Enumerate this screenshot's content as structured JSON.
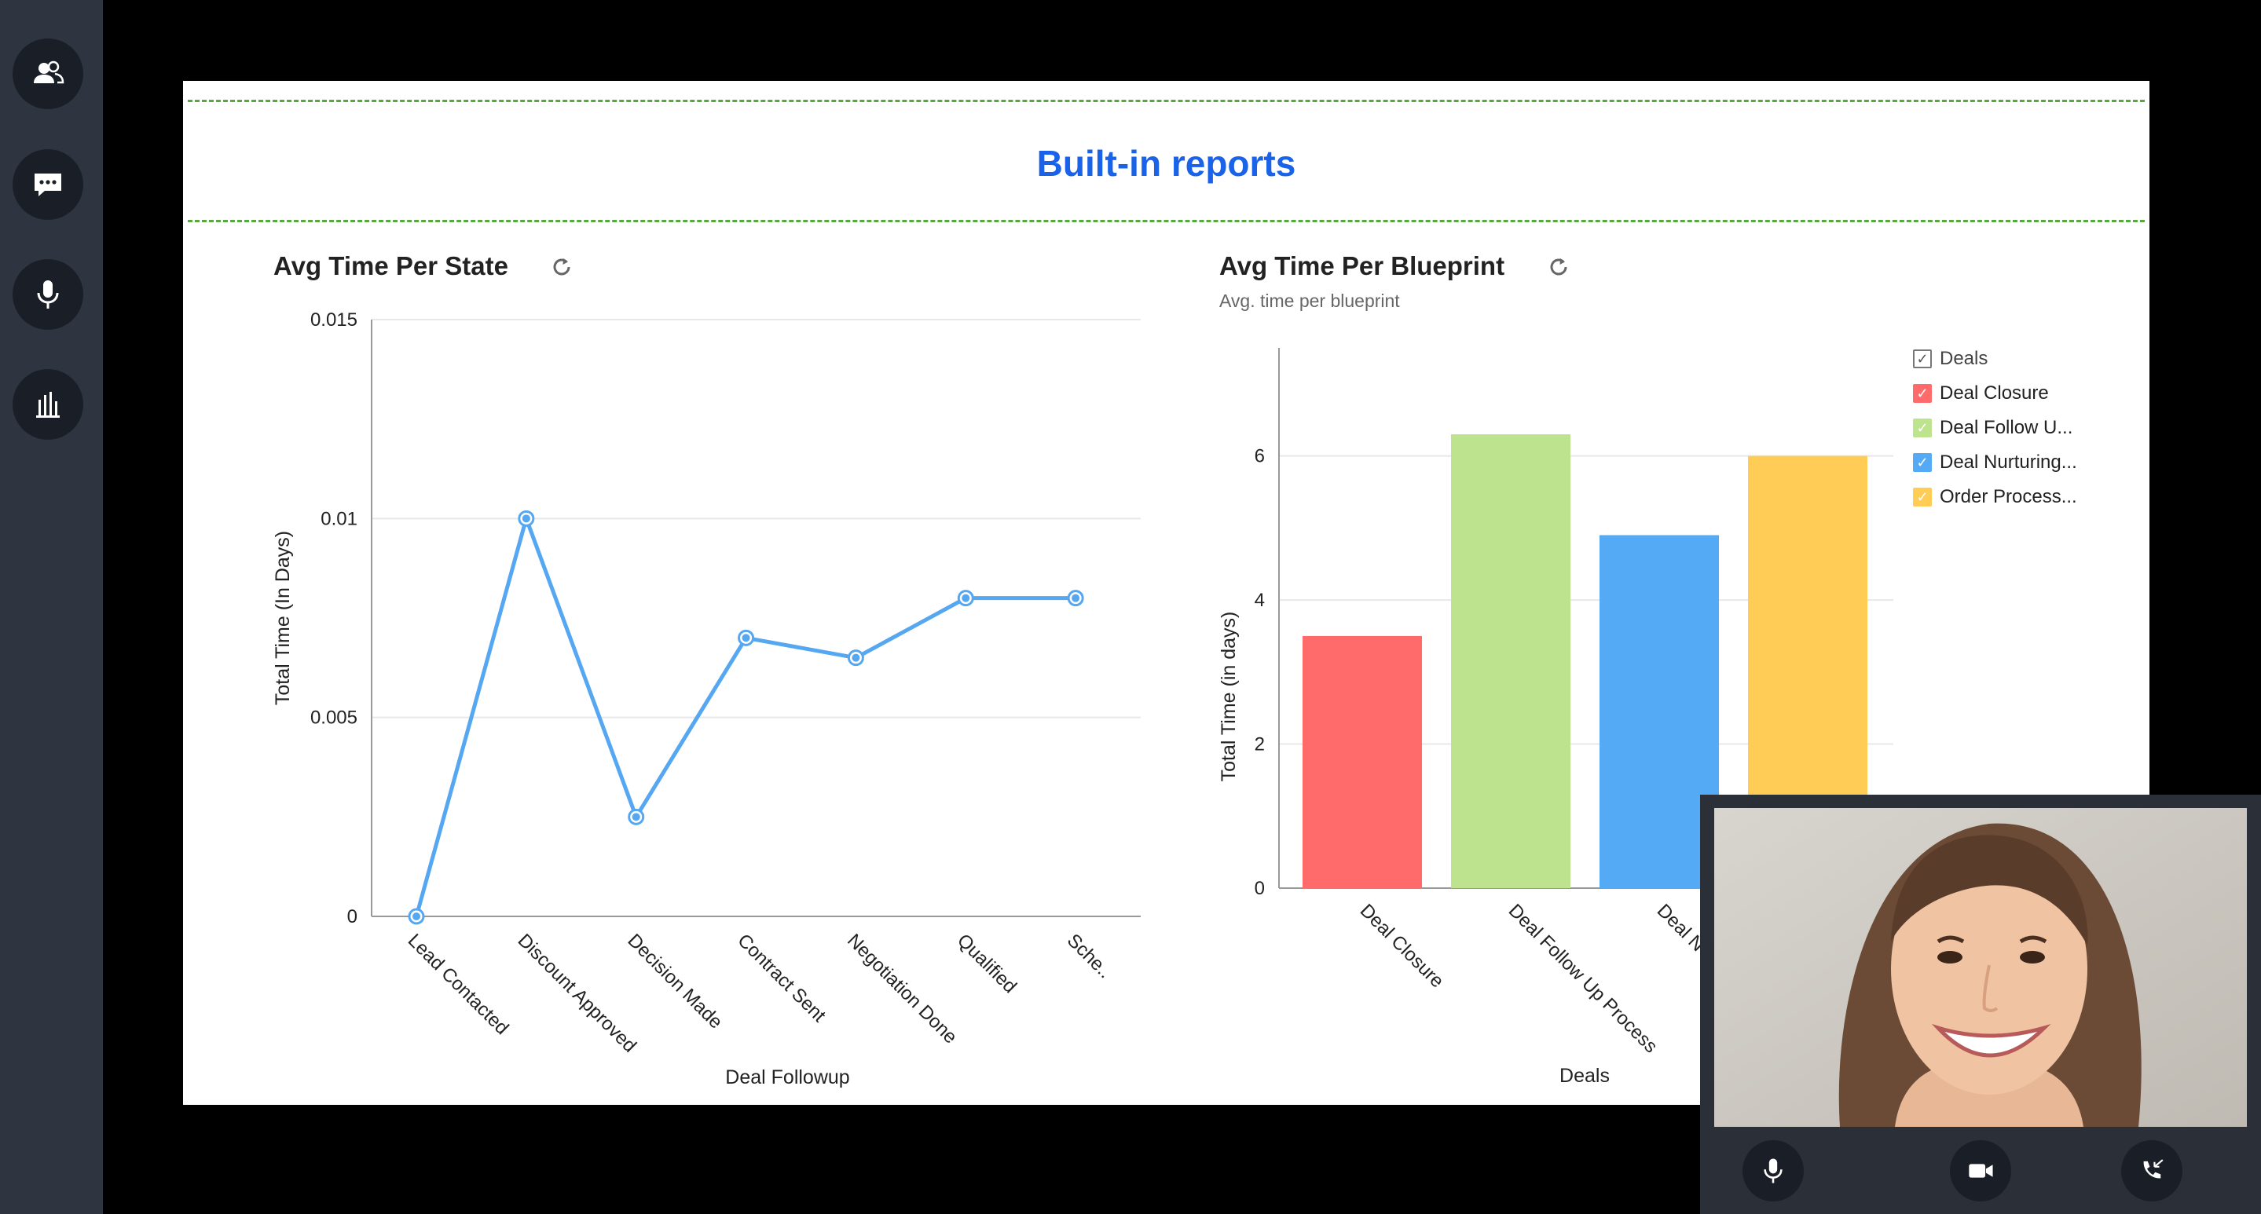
{
  "sidebar": {
    "items": [
      {
        "icon": "contacts-icon"
      },
      {
        "icon": "chat-icon"
      },
      {
        "icon": "microphone-icon"
      },
      {
        "icon": "bar-chart-icon"
      }
    ]
  },
  "header": {
    "title": "Built-in reports"
  },
  "left_card": {
    "title": "Avg Time Per State"
  },
  "right_card": {
    "title": "Avg Time Per Blueprint",
    "subtitle": "Avg. time per blueprint"
  },
  "video_controls": [
    {
      "icon": "microphone-icon"
    },
    {
      "icon": "video-camera-icon"
    },
    {
      "icon": "call-transfer-icon"
    }
  ],
  "colors": {
    "accent": "#1a63e8",
    "line": "#55a7f2",
    "dash": "#56a83f",
    "sidebar": "#2e3440"
  },
  "chart_data": [
    {
      "type": "line",
      "title": "Avg Time Per State",
      "xlabel": "Deal Followup",
      "ylabel": "Total Time (In Days)",
      "categories": [
        "Lead Contacted",
        "Discount Approved",
        "Decision Made",
        "Contract Sent",
        "Negotiation Done",
        "Qualified",
        "Sche.."
      ],
      "series": [
        {
          "values": [
            0,
            0.01,
            0.0025,
            0.007,
            0.0065,
            0.008,
            0.008
          ]
        }
      ],
      "ylim": [
        0,
        0.015
      ],
      "yticks": [
        "0",
        "0.005",
        "0.01",
        "0.015"
      ],
      "grid": true
    },
    {
      "type": "bar",
      "title": "Avg Time Per Blueprint",
      "subtitle": "Avg. time per blueprint",
      "xlabel": "Deals",
      "ylabel": "Total Time (in days)",
      "categories": [
        "Deal Closure",
        "Deal Follow Up Process",
        "Deal Nurturing Process",
        "Order Processing"
      ],
      "tick_labels": [
        "Deal Closure",
        "Deal Follow Up Process",
        "Deal N",
        ""
      ],
      "values": [
        3.5,
        6.3,
        4.9,
        6.0
      ],
      "colors": [
        "#ff6b6b",
        "#bde38e",
        "#55aaf5",
        "#ffcc55"
      ],
      "ylim": [
        0,
        7.5
      ],
      "yticks": [
        "0",
        "2",
        "4",
        "6"
      ],
      "grid": true,
      "legend": {
        "position": "top-right",
        "title": "Deals",
        "items": [
          "Deal Closure",
          "Deal Follow U...",
          "Deal Nurturing...",
          "Order Process..."
        ]
      }
    }
  ]
}
